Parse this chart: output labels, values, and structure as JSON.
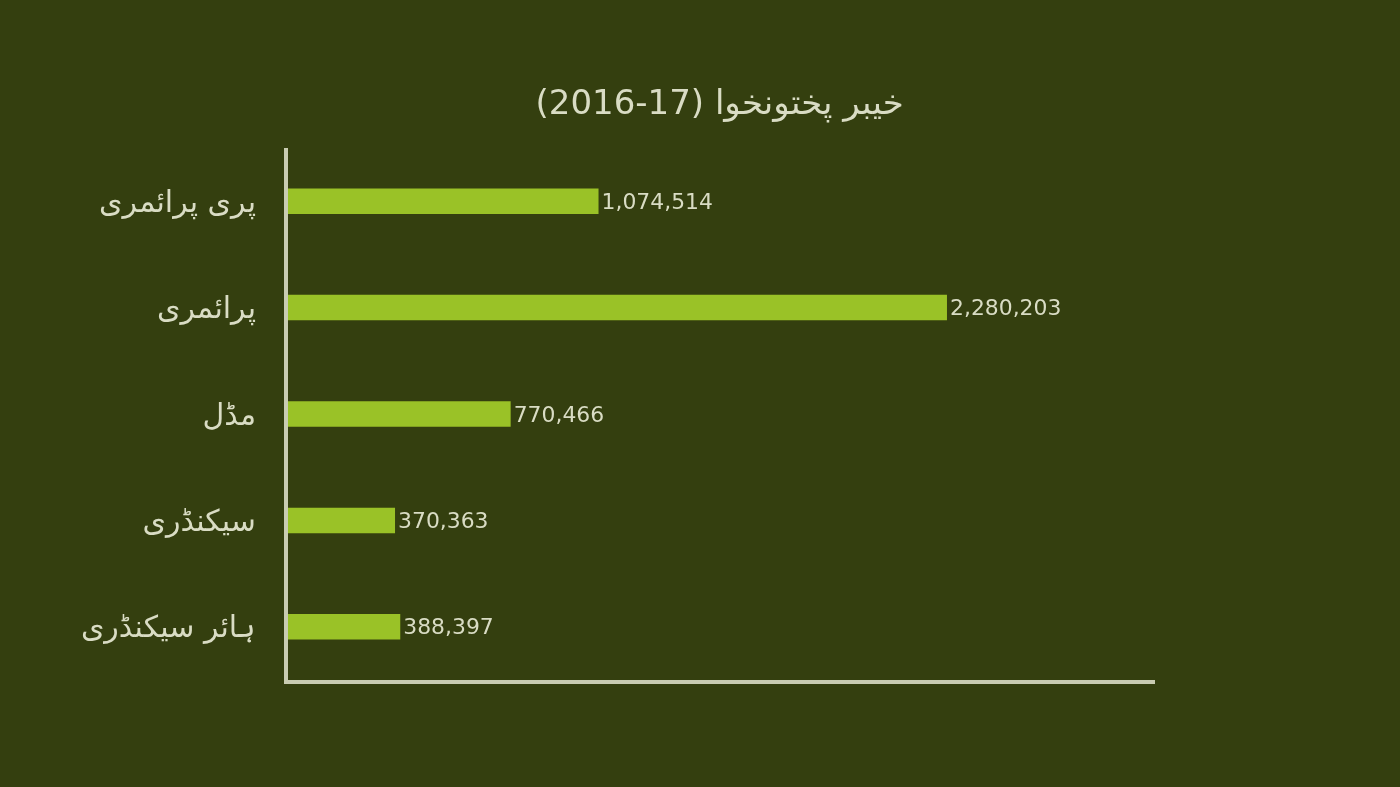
{
  "chart_data": {
    "type": "bar",
    "orientation": "horizontal",
    "title": "خیبر پختونخوا (2016-17)",
    "categories": [
      "پری پرائمری",
      "پرائمری",
      "مڈل",
      "سیکنڈری",
      "ہائر سیکنڈری"
    ],
    "values": [
      1074514,
      2280203,
      770466,
      370363,
      388397
    ],
    "value_labels": [
      "1,074,514",
      "2,280,203",
      "770,466",
      "370,363",
      "388,397"
    ],
    "color": "#9ac227",
    "xlim": [
      0,
      3000000
    ],
    "tick_labels": "y",
    "grid": false,
    "legend": false
  }
}
